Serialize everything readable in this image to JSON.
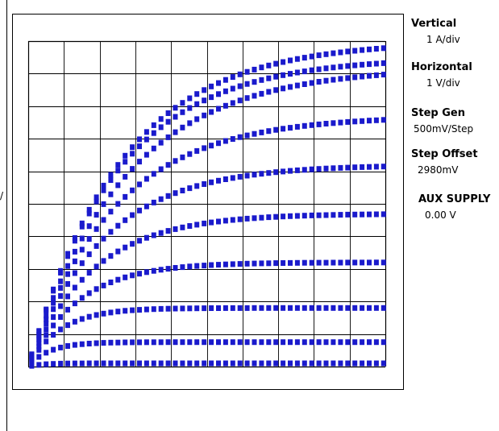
{
  "left_edge_mark": "/",
  "settings": [
    {
      "title": "Vertical",
      "value": "1 A/div"
    },
    {
      "title": "Horizontal",
      "value": "1 V/div"
    },
    {
      "title": "Step Gen",
      "value": "500mV/Step"
    },
    {
      "title": "Step Offset",
      "value": "2980mV"
    },
    {
      "title": "AUX SUPPLY",
      "value": "0.00 V"
    }
  ],
  "colors": {
    "trace": "#1a1acc",
    "grid": "#000000",
    "background": "#ffffff"
  },
  "chart_data": {
    "type": "scatter",
    "title": "",
    "xlabel": "",
    "ylabel": "",
    "grid": true,
    "divisions": {
      "x": 10,
      "y": 10
    },
    "xlim": [
      0,
      10
    ],
    "ylim": [
      0,
      10
    ],
    "series": [
      {
        "plateau": 0.1,
        "tau": 0.4
      },
      {
        "plateau": 0.75,
        "tau": 0.6
      },
      {
        "plateau": 1.8,
        "tau": 0.9
      },
      {
        "plateau": 3.2,
        "tau": 1.4
      },
      {
        "plateau": 4.7,
        "tau": 1.8
      },
      {
        "plateau": 6.2,
        "tau": 2.1
      },
      {
        "plateau": 7.7,
        "tau": 2.4
      },
      {
        "plateau": 9.2,
        "tau": 2.7
      },
      {
        "plateau": 9.5,
        "tau": 2.5
      },
      {
        "plateau": 10.0,
        "tau": 2.6
      }
    ]
  }
}
